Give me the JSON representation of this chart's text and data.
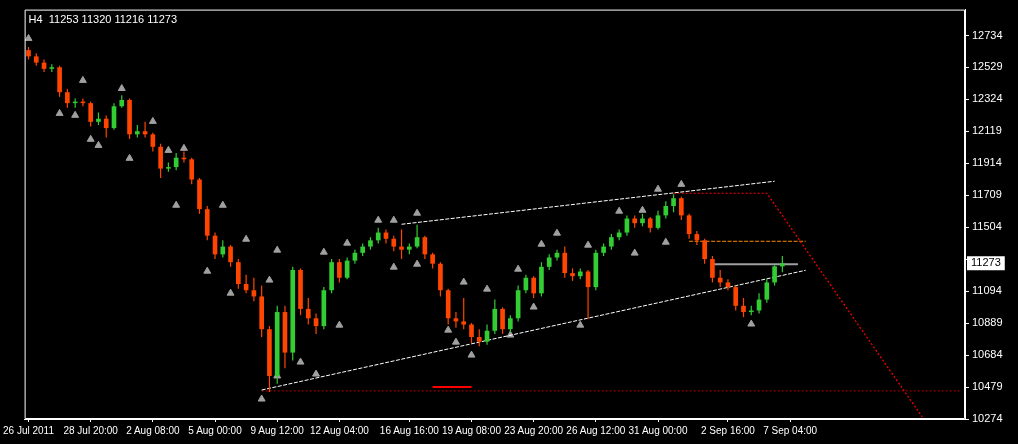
{
  "chart_data": {
    "type": "candlestick",
    "title": "H4  11253 11320 11216 11273",
    "categories": [
      "26 Jul 2011",
      null,
      null,
      null,
      null,
      null,
      null,
      null,
      "28 Jul 20:00",
      null,
      null,
      null,
      null,
      null,
      null,
      null,
      "2 Aug 08:00",
      null,
      null,
      null,
      null,
      null,
      null,
      null,
      "5 Aug 00:00",
      null,
      null,
      null,
      null,
      null,
      null,
      null,
      "9 Aug 12:00",
      null,
      null,
      null,
      null,
      null,
      null,
      null,
      "12 Aug 04:00",
      null,
      null,
      null,
      null,
      null,
      null,
      null,
      null,
      "16 Aug 16:00",
      null,
      null,
      null,
      null,
      null,
      null,
      null,
      "19 Aug 08:00",
      null,
      null,
      null,
      null,
      null,
      null,
      null,
      "23 Aug 20:00",
      null,
      null,
      null,
      null,
      null,
      null,
      null,
      "26 Aug 12:00",
      null,
      null,
      null,
      null,
      null,
      null,
      null,
      "31 Aug 00:00",
      null,
      null,
      null,
      null,
      null,
      null,
      null,
      null,
      "2 Sep 16:00",
      null,
      null,
      null,
      null,
      null,
      null,
      null,
      "7 Sep 04:00",
      null,
      null,
      null,
      null,
      null,
      null,
      null,
      null,
      null,
      null,
      null,
      null,
      null,
      null,
      null,
      null,
      null,
      null,
      null,
      null,
      null,
      null
    ],
    "ohlc": [
      [
        12640,
        12660,
        12580,
        12600
      ],
      [
        12600,
        12620,
        12540,
        12560
      ],
      [
        12560,
        12580,
        12500,
        12520
      ],
      [
        12520,
        12550,
        12500,
        12530
      ],
      [
        12530,
        12540,
        12340,
        12370
      ],
      [
        12370,
        12390,
        12270,
        12300
      ],
      [
        12300,
        12330,
        12270,
        12310
      ],
      [
        12310,
        12330,
        12280,
        12300
      ],
      [
        12300,
        12310,
        12150,
        12180
      ],
      [
        12180,
        12240,
        12160,
        12200
      ],
      [
        12200,
        12220,
        12080,
        12140
      ],
      [
        12140,
        12300,
        12130,
        12280
      ],
      [
        12280,
        12350,
        12270,
        12320
      ],
      [
        12320,
        12330,
        12070,
        12100
      ],
      [
        12100,
        12160,
        12080,
        12120
      ],
      [
        12120,
        12180,
        12080,
        12100
      ],
      [
        12100,
        12110,
        11990,
        12020
      ],
      [
        12020,
        12040,
        11820,
        11880
      ],
      [
        11880,
        11920,
        11860,
        11890
      ],
      [
        11890,
        11980,
        11870,
        11950
      ],
      [
        11950,
        11990,
        11920,
        11940
      ],
      [
        11940,
        11950,
        11780,
        11810
      ],
      [
        11810,
        11820,
        11590,
        11620
      ],
      [
        11620,
        11640,
        11420,
        11450
      ],
      [
        11450,
        11470,
        11300,
        11330
      ],
      [
        11330,
        11420,
        11310,
        11380
      ],
      [
        11380,
        11390,
        11250,
        11280
      ],
      [
        11280,
        11300,
        11110,
        11140
      ],
      [
        11140,
        11200,
        11080,
        11100
      ],
      [
        11100,
        11180,
        11030,
        11060
      ],
      [
        11060,
        11130,
        10800,
        10850
      ],
      [
        10850,
        10870,
        10447,
        10550
      ],
      [
        10550,
        11000,
        10500,
        10960
      ],
      [
        10960,
        11000,
        10600,
        10700
      ],
      [
        10700,
        11250,
        10650,
        11230
      ],
      [
        11230,
        11240,
        10940,
        10980
      ],
      [
        10980,
        11050,
        10880,
        10920
      ],
      [
        10920,
        10950,
        10820,
        10870
      ],
      [
        10870,
        11120,
        10850,
        11100
      ],
      [
        11100,
        11300,
        11080,
        11280
      ],
      [
        11280,
        11300,
        11150,
        11180
      ],
      [
        11180,
        11310,
        11170,
        11290
      ],
      [
        11290,
        11360,
        11270,
        11340
      ],
      [
        11340,
        11400,
        11320,
        11380
      ],
      [
        11380,
        11440,
        11360,
        11420
      ],
      [
        11420,
        11500,
        11400,
        11470
      ],
      [
        11470,
        11490,
        11400,
        11430
      ],
      [
        11430,
        11450,
        11350,
        11380
      ],
      [
        11380,
        11490,
        11300,
        11360
      ],
      [
        11360,
        11400,
        11330,
        11380
      ],
      [
        11380,
        11520,
        11370,
        11440
      ],
      [
        11440,
        11450,
        11300,
        11330
      ],
      [
        11330,
        11340,
        11240,
        11270
      ],
      [
        11270,
        11280,
        11060,
        11100
      ],
      [
        11100,
        11110,
        10880,
        10920
      ],
      [
        10920,
        10960,
        10860,
        10900
      ],
      [
        10900,
        11050,
        10850,
        10880
      ],
      [
        10880,
        10890,
        10760,
        10800
      ],
      [
        10800,
        10850,
        10740,
        10770
      ],
      [
        10770,
        10880,
        10750,
        10840
      ],
      [
        10840,
        11040,
        10820,
        10980
      ],
      [
        10980,
        10990,
        10820,
        10850
      ],
      [
        10850,
        10940,
        10830,
        10920
      ],
      [
        10920,
        11130,
        10900,
        11100
      ],
      [
        11100,
        11200,
        11080,
        11180
      ],
      [
        11180,
        11190,
        11050,
        11080
      ],
      [
        11080,
        11280,
        11060,
        11250
      ],
      [
        11250,
        11330,
        11230,
        11310
      ],
      [
        11310,
        11360,
        11290,
        11340
      ],
      [
        11340,
        11380,
        11180,
        11210
      ],
      [
        11210,
        11240,
        11160,
        11190
      ],
      [
        11190,
        11240,
        11170,
        11220
      ],
      [
        11220,
        11230,
        10915,
        11120
      ],
      [
        11120,
        11360,
        11100,
        11340
      ],
      [
        11340,
        11400,
        11320,
        11380
      ],
      [
        11380,
        11460,
        11360,
        11440
      ],
      [
        11440,
        11490,
        11420,
        11470
      ],
      [
        11470,
        11580,
        11450,
        11560
      ],
      [
        11560,
        11580,
        11500,
        11530
      ],
      [
        11530,
        11590,
        11510,
        11560
      ],
      [
        11560,
        11570,
        11470,
        11500
      ],
      [
        11500,
        11610,
        11490,
        11580
      ],
      [
        11580,
        11670,
        11560,
        11640
      ],
      [
        11640,
        11715,
        11600,
        11690
      ],
      [
        11690,
        11700,
        11550,
        11580
      ],
      [
        11580,
        11590,
        11430,
        11460
      ],
      [
        11460,
        11480,
        11390,
        11420
      ],
      [
        11420,
        11430,
        11270,
        11300
      ],
      [
        11300,
        11320,
        11150,
        11180
      ],
      [
        11180,
        11230,
        11120,
        11150
      ],
      [
        11150,
        11170,
        11100,
        11120
      ],
      [
        11120,
        11130,
        10970,
        11000
      ],
      [
        11000,
        11050,
        10928,
        10960
      ],
      [
        10960,
        11000,
        10940,
        10970
      ],
      [
        10970,
        11080,
        10950,
        11040
      ],
      [
        11040,
        11170,
        11020,
        11150
      ],
      [
        11150,
        11260,
        11130,
        11253
      ],
      [
        11253,
        11320,
        11216,
        11273
      ],
      null,
      null,
      null,
      null,
      null,
      null,
      null,
      null,
      null,
      null,
      null,
      null,
      null,
      null,
      null,
      null,
      null,
      null,
      null,
      null,
      null,
      null,
      null
    ],
    "colors": [
      "#ff4500",
      "#ff4500",
      "#ff4500",
      "#32cd32",
      "#ff4500",
      "#ff4500",
      "#32cd32",
      "#ff4500",
      "#ff4500",
      "#32cd32",
      "#ff4500",
      "#32cd32",
      "#32cd32",
      "#ff4500",
      "#32cd32",
      "#ff4500",
      "#ff4500",
      "#ff4500",
      "#32cd32",
      "#32cd32",
      "#ff4500",
      "#ff4500",
      "#ff4500",
      "#ff4500",
      "#ff4500",
      "#32cd32",
      "#ff4500",
      "#ff4500",
      "#ff4500",
      "#ff4500",
      "#ff4500",
      "#ff4500",
      "#32cd32",
      "#ff4500",
      "#32cd32",
      "#ff4500",
      "#ff4500",
      "#ff4500",
      "#32cd32",
      "#32cd32",
      "#ff4500",
      "#32cd32",
      "#32cd32",
      "#32cd32",
      "#32cd32",
      "#32cd32",
      "#ff4500",
      "#ff4500",
      "#ff4500",
      "#32cd32",
      "#32cd32",
      "#ff4500",
      "#ff4500",
      "#ff4500",
      "#ff4500",
      "#ff4500",
      "#ff4500",
      "#ff4500",
      "#ff4500",
      "#32cd32",
      "#32cd32",
      "#ff4500",
      "#32cd32",
      "#32cd32",
      "#32cd32",
      "#ff4500",
      "#32cd32",
      "#32cd32",
      "#32cd32",
      "#ff4500",
      "#ff4500",
      "#32cd32",
      "#ff4500",
      "#32cd32",
      "#32cd32",
      "#32cd32",
      "#32cd32",
      "#32cd32",
      "#ff4500",
      "#32cd32",
      "#ff4500",
      "#32cd32",
      "#32cd32",
      "#32cd32",
      "#ff4500",
      "#ff4500",
      "#ff4500",
      "#ff4500",
      "#ff4500",
      "#ff4500",
      "#ff4500",
      "#ff4500",
      "#ff4500",
      "#32cd32",
      "#32cd32",
      "#32cd32",
      "#32cd32",
      "#32cd32",
      null,
      null,
      null,
      null,
      null,
      null,
      null,
      null,
      null,
      null,
      null,
      null,
      null,
      null,
      null,
      null,
      null,
      null,
      null,
      null,
      null,
      null,
      null
    ],
    "series": [
      {
        "type": "line",
        "color": "#ffffff",
        "line_style": "dashed",
        "values": [
          null,
          null,
          null,
          null,
          null,
          null,
          null,
          null,
          null,
          null,
          null,
          null,
          null,
          null,
          null,
          null,
          null,
          null,
          null,
          null,
          null,
          null,
          null,
          null,
          null,
          null,
          null,
          null,
          null,
          null,
          10460,
          null,
          null,
          null,
          null,
          null,
          null,
          null,
          null,
          null,
          null,
          null,
          null,
          null,
          null,
          null,
          null,
          null,
          null,
          null,
          null,
          null,
          null,
          null,
          null,
          null,
          null,
          null,
          null,
          null,
          null,
          null,
          null,
          null,
          null,
          null,
          null,
          null,
          null,
          null,
          null,
          null,
          null,
          null,
          null,
          null,
          null,
          null,
          null,
          null,
          null,
          null,
          null,
          null,
          null,
          null,
          null,
          null,
          null,
          null,
          null,
          null,
          null,
          null,
          null,
          null,
          null,
          null,
          null,
          null,
          11228,
          null,
          null,
          null,
          null,
          null,
          null,
          null,
          null,
          null,
          null,
          null,
          null,
          null,
          null,
          null,
          null,
          null,
          null,
          null,
          null
        ]
      },
      {
        "type": "line",
        "color": "#ffffff",
        "line_style": "dashed",
        "values": [
          null,
          null,
          null,
          null,
          null,
          null,
          null,
          null,
          null,
          null,
          null,
          null,
          null,
          null,
          null,
          null,
          null,
          null,
          null,
          null,
          null,
          null,
          null,
          null,
          null,
          null,
          null,
          null,
          null,
          null,
          null,
          null,
          null,
          null,
          null,
          null,
          null,
          null,
          null,
          null,
          null,
          null,
          null,
          null,
          null,
          null,
          null,
          null,
          11523,
          null,
          null,
          null,
          null,
          null,
          null,
          null,
          null,
          null,
          null,
          null,
          null,
          null,
          null,
          null,
          null,
          null,
          null,
          null,
          null,
          null,
          null,
          null,
          null,
          null,
          null,
          null,
          null,
          null,
          null,
          null,
          null,
          null,
          null,
          null,
          null,
          null,
          null,
          null,
          null,
          null,
          null,
          null,
          null,
          null,
          null,
          null,
          11799,
          null,
          null,
          null,
          null,
          null,
          null,
          null,
          null,
          null,
          null,
          null,
          null,
          null,
          null,
          null,
          null,
          null,
          null,
          null,
          null,
          null,
          null,
          null,
          null
        ]
      },
      {
        "type": "line",
        "color": "#ff0000",
        "line_style": "dotted",
        "values": [
          null,
          null,
          null,
          null,
          null,
          null,
          null,
          null,
          null,
          null,
          null,
          null,
          null,
          null,
          null,
          null,
          null,
          null,
          null,
          null,
          null,
          null,
          null,
          null,
          null,
          null,
          null,
          null,
          null,
          null,
          null,
          null,
          null,
          null,
          null,
          null,
          null,
          null,
          null,
          null,
          null,
          null,
          null,
          null,
          null,
          null,
          null,
          null,
          null,
          null,
          null,
          null,
          null,
          null,
          null,
          null,
          null,
          null,
          null,
          null,
          null,
          null,
          null,
          null,
          null,
          null,
          null,
          null,
          null,
          null,
          null,
          null,
          null,
          null,
          null,
          null,
          null,
          null,
          null,
          null,
          null,
          null,
          null,
          11722,
          null,
          null,
          null,
          null,
          null,
          null,
          null,
          null,
          null,
          null,
          null,
          11722,
          null,
          null,
          null,
          null,
          null,
          null,
          null,
          null,
          null,
          null,
          null,
          null,
          null,
          null,
          null,
          null,
          null,
          null,
          null,
          10287,
          null,
          null,
          null,
          null,
          null
        ]
      },
      {
        "type": "line",
        "color": "#ff8c00",
        "line_style": "dashed",
        "values": [
          null,
          null,
          null,
          null,
          null,
          null,
          null,
          null,
          null,
          null,
          null,
          null,
          null,
          null,
          null,
          null,
          null,
          null,
          null,
          null,
          null,
          null,
          null,
          null,
          null,
          null,
          null,
          null,
          null,
          null,
          null,
          null,
          null,
          null,
          null,
          null,
          null,
          null,
          null,
          null,
          null,
          null,
          null,
          null,
          null,
          null,
          null,
          null,
          null,
          null,
          null,
          null,
          null,
          null,
          null,
          null,
          null,
          null,
          null,
          null,
          null,
          null,
          null,
          null,
          null,
          null,
          null,
          null,
          null,
          null,
          null,
          null,
          null,
          null,
          null,
          null,
          null,
          null,
          null,
          null,
          null,
          null,
          null,
          null,
          null,
          11414,
          null,
          null,
          null,
          null,
          null,
          null,
          null,
          null,
          null,
          null,
          null,
          null,
          null,
          null,
          11414,
          null,
          null,
          null,
          null,
          null,
          null,
          null,
          null,
          null,
          null,
          null,
          null,
          null,
          null,
          null,
          null,
          null,
          null,
          null,
          null
        ]
      },
      {
        "type": "line",
        "color": "#a0a0a0",
        "line_style": "solid",
        "values": [
          null,
          null,
          null,
          null,
          null,
          null,
          null,
          null,
          null,
          null,
          null,
          null,
          null,
          null,
          null,
          null,
          null,
          null,
          null,
          null,
          null,
          null,
          null,
          null,
          null,
          null,
          null,
          null,
          null,
          null,
          null,
          null,
          null,
          null,
          null,
          null,
          null,
          null,
          null,
          null,
          null,
          null,
          null,
          null,
          null,
          null,
          null,
          null,
          null,
          null,
          null,
          null,
          null,
          null,
          null,
          null,
          null,
          null,
          null,
          null,
          null,
          null,
          null,
          null,
          null,
          null,
          null,
          null,
          null,
          null,
          null,
          null,
          null,
          null,
          null,
          null,
          null,
          null,
          null,
          null,
          null,
          null,
          null,
          null,
          null,
          null,
          null,
          null,
          11267,
          null,
          null,
          null,
          null,
          null,
          null,
          null,
          null,
          null,
          null,
          11267,
          null,
          null,
          null,
          null,
          null,
          null,
          null,
          null,
          null,
          null,
          null,
          null,
          null,
          null,
          null,
          null,
          null,
          null,
          null,
          null,
          null
        ]
      },
      {
        "type": "line",
        "color": "#8b0000",
        "line_style": "dotted",
        "values": [
          null,
          null,
          null,
          null,
          null,
          null,
          null,
          null,
          null,
          null,
          null,
          null,
          null,
          null,
          null,
          null,
          null,
          null,
          null,
          null,
          null,
          null,
          null,
          null,
          null,
          null,
          null,
          null,
          null,
          null,
          10454,
          null,
          null,
          null,
          null,
          null,
          null,
          null,
          null,
          null,
          null,
          null,
          null,
          null,
          null,
          null,
          null,
          null,
          null,
          null,
          null,
          null,
          null,
          null,
          null,
          null,
          null,
          null,
          null,
          null,
          null,
          null,
          null,
          null,
          null,
          null,
          null,
          null,
          null,
          null,
          null,
          null,
          null,
          null,
          null,
          null,
          null,
          null,
          null,
          null,
          null,
          null,
          null,
          null,
          null,
          null,
          null,
          null,
          null,
          null,
          null,
          null,
          null,
          null,
          null,
          null,
          null,
          null,
          null,
          null,
          null,
          null,
          null,
          null,
          null,
          null,
          null,
          null,
          null,
          null,
          null,
          null,
          null,
          null,
          null,
          null,
          null,
          null,
          null,
          null,
          10454
        ]
      },
      {
        "type": "line",
        "color": "#ff0000",
        "line_style": "solid",
        "values": [
          null,
          null,
          null,
          null,
          null,
          null,
          null,
          null,
          null,
          null,
          null,
          null,
          null,
          null,
          null,
          null,
          null,
          null,
          null,
          null,
          null,
          null,
          null,
          null,
          null,
          null,
          null,
          null,
          null,
          null,
          null,
          null,
          null,
          null,
          null,
          null,
          null,
          null,
          null,
          null,
          null,
          null,
          null,
          null,
          null,
          null,
          null,
          null,
          null,
          null,
          null,
          null,
          10479,
          null,
          null,
          null,
          null,
          10479,
          null,
          null,
          null,
          null,
          null,
          null,
          null,
          null,
          null,
          null,
          null,
          null,
          null,
          null,
          null,
          null,
          null,
          null,
          null,
          null,
          null,
          null,
          null,
          null,
          null,
          null,
          null,
          null,
          null,
          null,
          null,
          null,
          null,
          null,
          null,
          null,
          null,
          null,
          null,
          null,
          null,
          null,
          null,
          null,
          null,
          null,
          null,
          null,
          null,
          null,
          null,
          null,
          null,
          null,
          null,
          null,
          null,
          null,
          null,
          null,
          null,
          null,
          null
        ]
      },
      {
        "type": "scatter",
        "color": "#a0a0a0",
        "marker": "triangle",
        "values": [
          12715,
          null,
          null,
          null,
          null,
          null,
          null,
          12446,
          null,
          null,
          null,
          null,
          12394,
          null,
          null,
          null,
          12183,
          null,
          11997,
          null,
          12010,
          null,
          null,
          null,
          null,
          11645,
          null,
          null,
          11427,
          null,
          null,
          11165,
          11357,
          null,
          null,
          null,
          null,
          null,
          11344,
          null,
          null,
          11402,
          null,
          null,
          null,
          11549,
          null,
          11549,
          null,
          null,
          11594,
          null,
          null,
          null,
          null,
          null,
          11152,
          null,
          null,
          11107,
          null,
          null,
          null,
          11235,
          null,
          null,
          11395,
          null,
          11466,
          null,
          null,
          null,
          11389,
          null,
          null,
          null,
          11607,
          null,
          null,
          11613,
          null,
          11748,
          null,
          null,
          11779,
          null,
          null,
          null,
          null,
          null,
          null,
          null,
          null,
          null,
          null,
          null,
          null,
          null,
          null,
          null,
          null,
          null,
          null,
          null,
          null,
          null,
          null,
          null,
          null,
          null,
          null,
          null,
          null,
          null,
          null,
          null,
          null,
          null,
          null,
          null,
          null
        ]
      },
      {
        "type": "scatter",
        "color": "#a0a0a0",
        "marker": "triangle",
        "values": [
          null,
          null,
          null,
          null,
          12234,
          null,
          12222,
          null,
          12068,
          12029,
          null,
          null,
          null,
          11946,
          null,
          null,
          null,
          null,
          null,
          11645,
          null,
          null,
          null,
          11222,
          null,
          null,
          11081,
          null,
          null,
          null,
          10402,
          null,
          10550,
          null,
          null,
          10639,
          null,
          10562,
          null,
          null,
          10876,
          null,
          null,
          null,
          null,
          null,
          null,
          11248,
          null,
          null,
          11267,
          null,
          null,
          null,
          10844,
          10767,
          null,
          10684,
          null,
          null,
          null,
          null,
          10812,
          null,
          null,
          10992,
          null,
          null,
          null,
          null,
          null,
          10876,
          null,
          null,
          null,
          null,
          null,
          null,
          11338,
          null,
          null,
          null,
          11408,
          null,
          null,
          null,
          null,
          null,
          null,
          null,
          null,
          null,
          null,
          10883,
          null,
          null,
          null,
          null,
          null,
          null,
          null,
          null,
          null,
          null,
          null,
          null,
          null,
          null,
          null,
          null,
          null,
          null,
          null,
          null,
          null,
          null,
          null,
          null,
          null,
          null,
          null
        ]
      }
    ],
    "ylim": [
      10274,
      12900
    ],
    "yticks": [
      10274,
      10479,
      10684,
      10889,
      11094,
      {
        "value": 11299,
        "label": null
      },
      11504,
      11709,
      11914,
      12119,
      12324,
      12529,
      12734
    ],
    "annotations": [
      {
        "text": "11273",
        "y": 11273
      }
    ]
  }
}
